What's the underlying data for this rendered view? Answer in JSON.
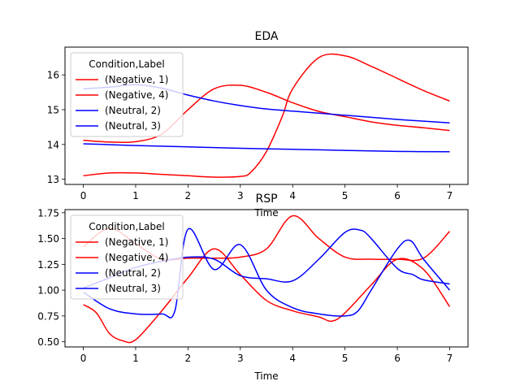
{
  "chart_data": [
    {
      "type": "line",
      "title": "EDA",
      "xlabel": "Time",
      "ylabel": "",
      "xlim": [
        -0.35,
        7.35
      ],
      "ylim": [
        12.85,
        16.8
      ],
      "xticks": [
        0,
        1,
        2,
        3,
        4,
        5,
        6,
        7
      ],
      "xtick_labels": [
        "0",
        "1",
        "2",
        "3",
        "4",
        "5",
        "6",
        "7"
      ],
      "yticks": [
        13,
        14,
        15,
        16
      ],
      "ytick_labels": [
        "13",
        "14",
        "15",
        "16"
      ],
      "legend": {
        "title": "Condition,Label",
        "placement": "upper-left"
      },
      "grid": false,
      "series": [
        {
          "name": "(Negative, 1)",
          "color": "#ff0000",
          "x": [
            0,
            0.5,
            1,
            1.5,
            2,
            2.5,
            3,
            3.5,
            4,
            4.5,
            5,
            5.5,
            6,
            6.5,
            7
          ],
          "y": [
            14.12,
            14.07,
            14.08,
            14.3,
            15.0,
            15.6,
            15.7,
            15.5,
            15.2,
            14.95,
            14.8,
            14.65,
            14.55,
            14.48,
            14.4
          ]
        },
        {
          "name": "(Negative, 4)",
          "color": "#ff0000",
          "x": [
            0,
            0.5,
            1,
            1.5,
            2,
            2.5,
            3,
            3.2,
            3.5,
            3.8,
            4,
            4.5,
            5,
            5.5,
            6,
            6.5,
            7
          ],
          "y": [
            13.1,
            13.18,
            13.18,
            13.14,
            13.1,
            13.06,
            13.08,
            13.2,
            13.8,
            14.8,
            15.6,
            16.5,
            16.55,
            16.25,
            15.9,
            15.55,
            15.25
          ]
        },
        {
          "name": "(Neutral, 2)",
          "color": "#0000ff",
          "x": [
            0,
            0.5,
            1,
            1.5,
            2,
            2.5,
            3,
            3.5,
            4,
            4.5,
            5,
            5.5,
            6,
            6.5,
            7
          ],
          "y": [
            15.6,
            15.65,
            15.72,
            15.62,
            15.42,
            15.25,
            15.12,
            15.02,
            14.96,
            14.9,
            14.84,
            14.78,
            14.72,
            14.67,
            14.62
          ]
        },
        {
          "name": "(Neutral, 3)",
          "color": "#0000ff",
          "x": [
            0,
            1,
            2,
            3,
            4,
            5,
            6,
            7
          ],
          "y": [
            14.02,
            13.97,
            13.93,
            13.89,
            13.86,
            13.83,
            13.8,
            13.79
          ]
        }
      ]
    },
    {
      "type": "line",
      "title": "RSP",
      "xlabel": "Time",
      "ylabel": "",
      "xlim": [
        -0.35,
        7.35
      ],
      "ylim": [
        0.45,
        1.78
      ],
      "xticks": [
        0,
        1,
        2,
        3,
        4,
        5,
        6,
        7
      ],
      "xtick_labels": [
        "0",
        "1",
        "2",
        "3",
        "4",
        "5",
        "6",
        "7"
      ],
      "yticks": [
        0.5,
        0.75,
        1.0,
        1.25,
        1.5,
        1.75
      ],
      "ytick_labels": [
        "0.50",
        "0.75",
        "1.00",
        "1.25",
        "1.50",
        "1.75"
      ],
      "legend": {
        "title": "Condition,Label",
        "placement": "upper-left"
      },
      "grid": false,
      "series": [
        {
          "name": "(Negative, 1)",
          "color": "#ff0000",
          "x": [
            0,
            0.5,
            1,
            1.5,
            2,
            2.5,
            3,
            3.5,
            4,
            4.5,
            5,
            5.5,
            6,
            6.5,
            7
          ],
          "y": [
            1.42,
            1.6,
            1.45,
            1.3,
            1.31,
            1.31,
            1.32,
            1.4,
            1.72,
            1.5,
            1.32,
            1.3,
            1.3,
            1.31,
            1.57
          ]
        },
        {
          "name": "(Negative, 4)",
          "color": "#ff0000",
          "x": [
            0,
            0.25,
            0.5,
            0.75,
            1,
            1.5,
            2,
            2.5,
            3,
            3.5,
            4,
            4.5,
            4.75,
            5,
            5.5,
            6,
            6.5,
            7
          ],
          "y": [
            0.86,
            0.78,
            0.58,
            0.51,
            0.52,
            0.8,
            1.12,
            1.4,
            1.15,
            0.9,
            0.8,
            0.74,
            0.7,
            0.78,
            1.05,
            1.3,
            1.2,
            0.84
          ]
        },
        {
          "name": "(Neutral, 2)",
          "color": "#0000ff",
          "x": [
            0,
            0.5,
            1,
            1.5,
            2,
            2.5,
            3,
            3.5,
            4,
            4.5,
            5,
            5.3,
            5.5,
            6,
            6.3,
            6.5,
            7
          ],
          "y": [
            1.02,
            1.12,
            1.22,
            1.28,
            1.32,
            1.3,
            1.14,
            1.11,
            1.09,
            1.3,
            1.56,
            1.58,
            1.5,
            1.21,
            1.15,
            1.1,
            1.06
          ]
        },
        {
          "name": "(Neutral, 3)",
          "color": "#0000ff",
          "x": [
            0,
            0.5,
            1,
            1.5,
            1.75,
            2,
            2.5,
            3,
            3.5,
            4,
            4.5,
            5,
            5.25,
            5.5,
            6,
            6.25,
            6.5,
            7
          ],
          "y": [
            0.98,
            0.82,
            0.77,
            0.77,
            0.8,
            1.59,
            1.2,
            1.44,
            1.0,
            0.83,
            0.77,
            0.75,
            0.8,
            1.0,
            1.4,
            1.48,
            1.3,
            1.0
          ]
        }
      ]
    }
  ]
}
